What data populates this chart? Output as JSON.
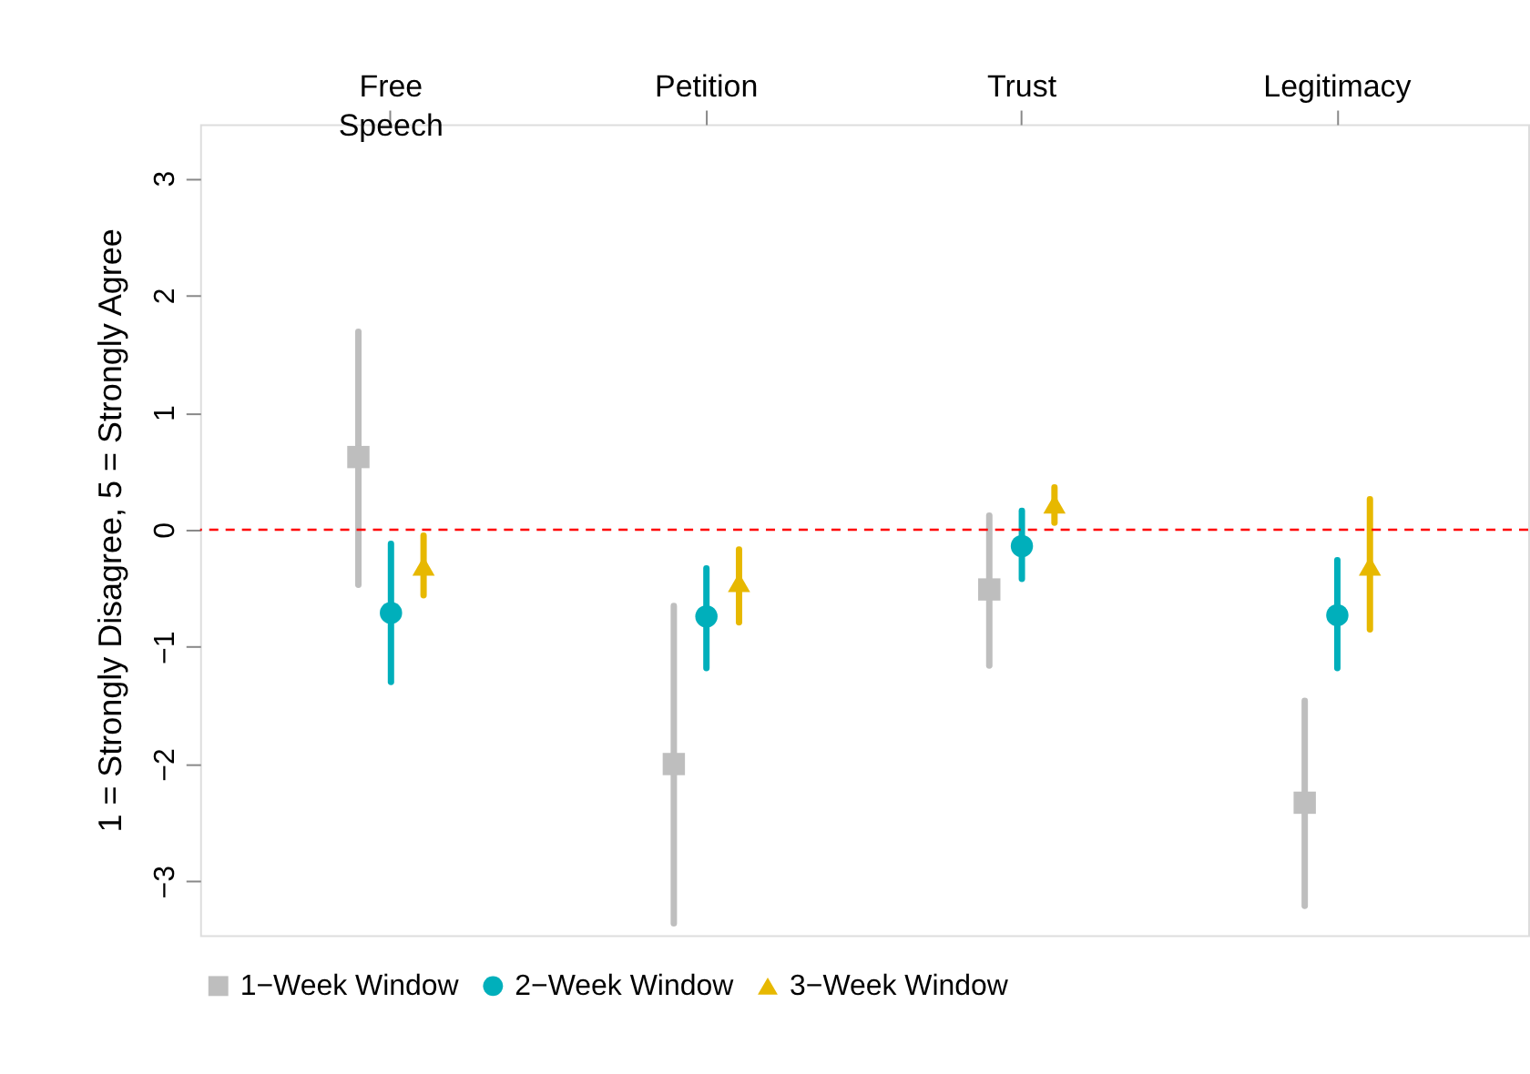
{
  "chart_data": {
    "type": "scatter",
    "ylabel": "1 = Strongly Disagree, 5 = Strongly Agree",
    "categories": [
      "Free Speech",
      "Petition",
      "Trust",
      "Legitimacy"
    ],
    "ylim": [
      -3.46,
      3.46
    ],
    "yticks": [
      -3,
      -2,
      -1,
      0,
      1,
      2,
      3
    ],
    "grid": false,
    "legend": "bottom",
    "series": [
      {
        "name": "1−Week Window",
        "color": "#bebebe",
        "marker": "square",
        "values": [
          0.62,
          -2.0,
          -0.51,
          -2.33
        ],
        "errors": [
          [
            -0.47,
            1.69
          ],
          [
            -3.36,
            -0.65
          ],
          [
            -1.16,
            0.12
          ],
          [
            -3.21,
            -1.46
          ]
        ]
      },
      {
        "name": "2−Week Window",
        "color": "#00afbb",
        "marker": "circle",
        "values": [
          -0.71,
          -0.74,
          -0.14,
          -0.73
        ],
        "errors": [
          [
            -1.3,
            -0.12
          ],
          [
            -1.18,
            -0.33
          ],
          [
            -0.42,
            0.16
          ],
          [
            -1.18,
            -0.26
          ]
        ]
      },
      {
        "name": "3−Week Window",
        "color": "#e7b800",
        "marker": "triangle",
        "values": [
          -0.31,
          -0.45,
          0.22,
          -0.31
        ],
        "errors": [
          [
            -0.56,
            -0.05
          ],
          [
            -0.79,
            -0.17
          ],
          [
            0.06,
            0.36
          ],
          [
            -0.85,
            0.26
          ]
        ]
      }
    ],
    "ref_lines": [
      {
        "axis": "y",
        "value": 0,
        "color": "#ff0000",
        "line_style": "dashed"
      }
    ]
  }
}
